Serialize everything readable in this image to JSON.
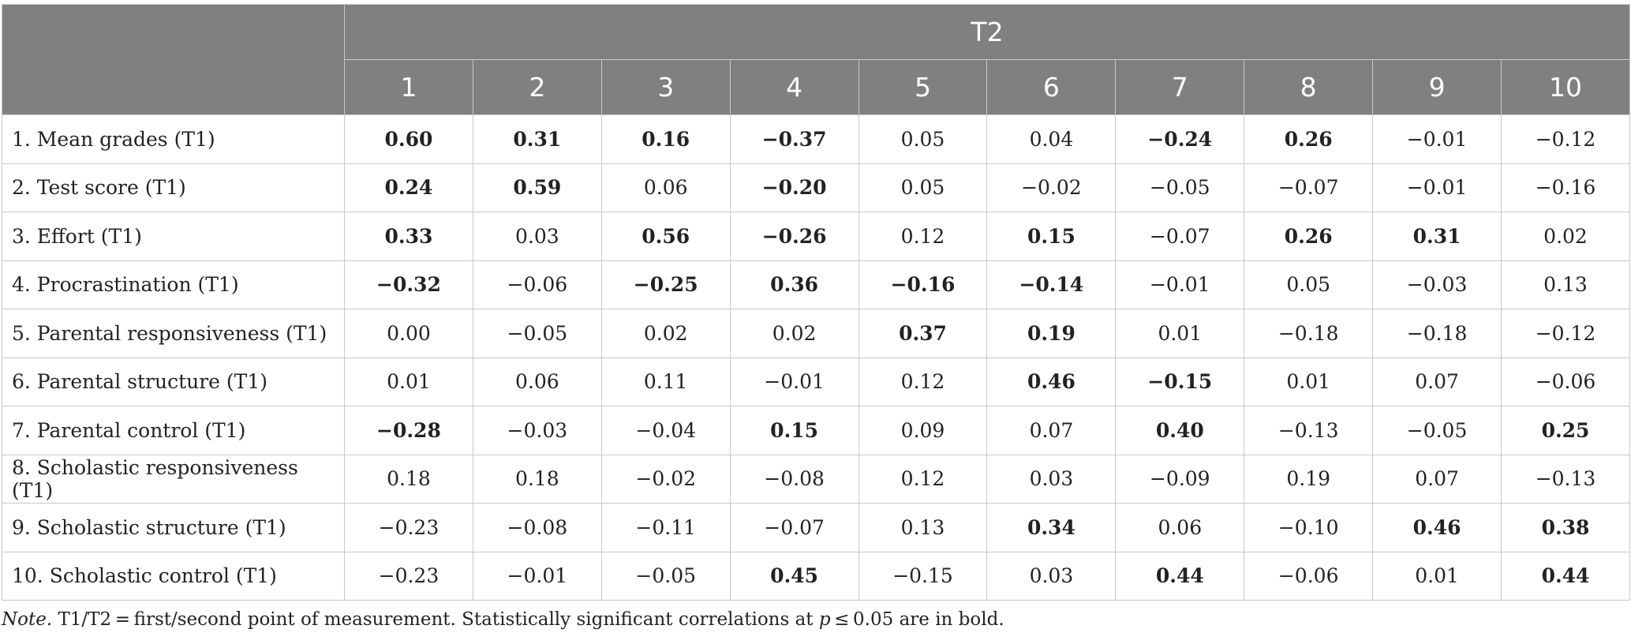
{
  "header": {
    "group_label": "T2",
    "columns": [
      "1",
      "2",
      "3",
      "4",
      "5",
      "6",
      "7",
      "8",
      "9",
      "10"
    ]
  },
  "rows": [
    {
      "label": "1. Mean grades (T1)",
      "values": [
        "0.60",
        "0.31",
        "0.16",
        "−0.37",
        "0.05",
        "0.04",
        "−0.24",
        "0.26",
        "−0.01",
        "−0.12"
      ],
      "bold": [
        true,
        true,
        true,
        true,
        false,
        false,
        true,
        true,
        false,
        false
      ]
    },
    {
      "label": "2. Test score (T1)",
      "values": [
        "0.24",
        "0.59",
        "0.06",
        "−0.20",
        "0.05",
        "−0.02",
        "−0.05",
        "−0.07",
        "−0.01",
        "−0.16"
      ],
      "bold": [
        true,
        true,
        false,
        true,
        false,
        false,
        false,
        false,
        false,
        false
      ]
    },
    {
      "label": "3. Effort (T1)",
      "values": [
        "0.33",
        "0.03",
        "0.56",
        "−0.26",
        "0.12",
        "0.15",
        "−0.07",
        "0.26",
        "0.31",
        "0.02"
      ],
      "bold": [
        true,
        false,
        true,
        true,
        false,
        true,
        false,
        true,
        true,
        false
      ]
    },
    {
      "label": "4. Procrastination (T1)",
      "values": [
        "−0.32",
        "−0.06",
        "−0.25",
        "0.36",
        "−0.16",
        "−0.14",
        "−0.01",
        "0.05",
        "−0.03",
        "0.13"
      ],
      "bold": [
        true,
        false,
        true,
        true,
        true,
        true,
        false,
        false,
        false,
        false
      ]
    },
    {
      "label": "5. Parental responsiveness (T1)",
      "values": [
        "0.00",
        "−0.05",
        "0.02",
        "0.02",
        "0.37",
        "0.19",
        "0.01",
        "−0.18",
        "−0.18",
        "−0.12"
      ],
      "bold": [
        false,
        false,
        false,
        false,
        true,
        true,
        false,
        false,
        false,
        false
      ]
    },
    {
      "label": "6. Parental structure (T1)",
      "values": [
        "0.01",
        "0.06",
        "0.11",
        "−0.01",
        "0.12",
        "0.46",
        "−0.15",
        "0.01",
        "0.07",
        "−0.06"
      ],
      "bold": [
        false,
        false,
        false,
        false,
        false,
        true,
        true,
        false,
        false,
        false
      ]
    },
    {
      "label": "7. Parental control (T1)",
      "values": [
        "−0.28",
        "−0.03",
        "−0.04",
        "0.15",
        "0.09",
        "0.07",
        "0.40",
        "−0.13",
        "−0.05",
        "0.25"
      ],
      "bold": [
        true,
        false,
        false,
        true,
        false,
        false,
        true,
        false,
        false,
        true
      ]
    },
    {
      "label": "8. Scholastic responsiveness (T1)",
      "values": [
        "0.18",
        "0.18",
        "−0.02",
        "−0.08",
        "0.12",
        "0.03",
        "−0.09",
        "0.19",
        "0.07",
        "−0.13"
      ],
      "bold": [
        false,
        false,
        false,
        false,
        false,
        false,
        false,
        false,
        false,
        false
      ]
    },
    {
      "label": "9. Scholastic structure (T1)",
      "values": [
        "−0.23",
        "−0.08",
        "−0.11",
        "−0.07",
        "0.13",
        "0.34",
        "0.06",
        "−0.10",
        "0.46",
        "0.38"
      ],
      "bold": [
        false,
        false,
        false,
        false,
        false,
        true,
        false,
        false,
        true,
        true
      ]
    },
    {
      "label": "10. Scholastic control (T1)",
      "values": [
        "−0.23",
        "−0.01",
        "−0.05",
        "0.45",
        "−0.15",
        "0.03",
        "0.44",
        "−0.06",
        "0.01",
        "0.44"
      ],
      "bold": [
        false,
        false,
        false,
        true,
        false,
        false,
        true,
        false,
        false,
        true
      ]
    }
  ],
  "note": {
    "lead": "Note.",
    "text_a": " T1/T2 = first/second point of measurement. Statistically significant correlations at ",
    "p": "p",
    "text_b": " ≤ 0.05 are in bold."
  }
}
